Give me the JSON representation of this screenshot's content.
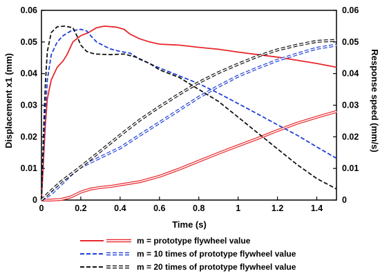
{
  "chart_data": {
    "type": "line",
    "xlabel": "Time (s)",
    "ylabel_left": "Displacement x1 (mm)",
    "ylabel_right": "Response speed (mm/s)",
    "xlim": [
      0,
      1.5
    ],
    "ylim_left": [
      0,
      0.06
    ],
    "ylim_right": [
      0,
      0.06
    ],
    "x_ticks": [
      "0",
      "0.2",
      "0.4",
      "0.6",
      "0.8",
      "1",
      "1.2",
      "1.4"
    ],
    "y_ticks_left": [
      "0",
      "0.01",
      "0.02",
      "0.03",
      "0.04",
      "0.05",
      "0.06"
    ],
    "y_ticks_right": [
      "0",
      "0.01",
      "0.02",
      "0.03",
      "0.04",
      "0.05",
      "0.06"
    ],
    "grid": false,
    "legend_position": "bottom",
    "series": [
      {
        "name": "m = prototype flywheel value",
        "color": "#e8262b",
        "role": "speed",
        "axis": "right",
        "points": [
          [
            0,
            0
          ],
          [
            0.01,
            0.012
          ],
          [
            0.02,
            0.024
          ],
          [
            0.03,
            0.032
          ],
          [
            0.05,
            0.038
          ],
          [
            0.08,
            0.042
          ],
          [
            0.11,
            0.044
          ],
          [
            0.13,
            0.046
          ],
          [
            0.16,
            0.05
          ],
          [
            0.2,
            0.052
          ],
          [
            0.24,
            0.053
          ],
          [
            0.28,
            0.0545
          ],
          [
            0.32,
            0.055
          ],
          [
            0.38,
            0.0547
          ],
          [
            0.42,
            0.054
          ],
          [
            0.45,
            0.0525
          ],
          [
            0.5,
            0.051
          ],
          [
            0.55,
            0.05
          ],
          [
            0.6,
            0.0493
          ],
          [
            0.7,
            0.049
          ],
          [
            0.8,
            0.0483
          ],
          [
            0.9,
            0.0477
          ],
          [
            1.0,
            0.0468
          ],
          [
            1.1,
            0.046
          ],
          [
            1.2,
            0.0452
          ],
          [
            1.3,
            0.0442
          ],
          [
            1.4,
            0.0432
          ],
          [
            1.5,
            0.042
          ]
        ]
      },
      {
        "name": "m = prototype flywheel value",
        "color": "#e8262b",
        "role": "displacement",
        "axis": "left",
        "points": [
          [
            0,
            0
          ],
          [
            0.05,
            0
          ],
          [
            0.1,
            0.0002
          ],
          [
            0.15,
            0.001
          ],
          [
            0.2,
            0.0025
          ],
          [
            0.25,
            0.0035
          ],
          [
            0.3,
            0.004
          ],
          [
            0.35,
            0.0043
          ],
          [
            0.4,
            0.0048
          ],
          [
            0.5,
            0.0058
          ],
          [
            0.6,
            0.0075
          ],
          [
            0.7,
            0.0098
          ],
          [
            0.8,
            0.0123
          ],
          [
            0.9,
            0.0148
          ],
          [
            1.0,
            0.0172
          ],
          [
            1.1,
            0.0195
          ],
          [
            1.2,
            0.022
          ],
          [
            1.3,
            0.0243
          ],
          [
            1.4,
            0.0262
          ],
          [
            1.5,
            0.028
          ]
        ]
      },
      {
        "name": "m = 10 times of prototype flywheel value",
        "color": "#1f3fd6",
        "role": "speed",
        "axis": "right",
        "points": [
          [
            0,
            0
          ],
          [
            0.01,
            0.015
          ],
          [
            0.02,
            0.028
          ],
          [
            0.03,
            0.038
          ],
          [
            0.05,
            0.046
          ],
          [
            0.08,
            0.05
          ],
          [
            0.11,
            0.052
          ],
          [
            0.15,
            0.0535
          ],
          [
            0.2,
            0.054
          ],
          [
            0.23,
            0.0535
          ],
          [
            0.25,
            0.052
          ],
          [
            0.28,
            0.05
          ],
          [
            0.32,
            0.0487
          ],
          [
            0.35,
            0.0478
          ],
          [
            0.4,
            0.047
          ],
          [
            0.45,
            0.0465
          ],
          [
            0.5,
            0.0445
          ],
          [
            0.6,
            0.0418
          ],
          [
            0.7,
            0.0393
          ],
          [
            0.8,
            0.0368
          ],
          [
            0.9,
            0.0338
          ],
          [
            1.0,
            0.0305
          ],
          [
            1.1,
            0.0272
          ],
          [
            1.2,
            0.0238
          ],
          [
            1.3,
            0.0205
          ],
          [
            1.4,
            0.0168
          ],
          [
            1.5,
            0.0132
          ]
        ]
      },
      {
        "name": "m = 10 times of prototype flywheel value",
        "color": "#1f3fd6",
        "role": "displacement",
        "axis": "left",
        "points": [
          [
            0,
            0
          ],
          [
            0.05,
            0.002
          ],
          [
            0.1,
            0.005
          ],
          [
            0.15,
            0.008
          ],
          [
            0.2,
            0.0105
          ],
          [
            0.3,
            0.0135
          ],
          [
            0.4,
            0.0165
          ],
          [
            0.5,
            0.0205
          ],
          [
            0.6,
            0.0245
          ],
          [
            0.7,
            0.0285
          ],
          [
            0.8,
            0.0325
          ],
          [
            0.9,
            0.036
          ],
          [
            1.0,
            0.0392
          ],
          [
            1.1,
            0.0418
          ],
          [
            1.2,
            0.0442
          ],
          [
            1.3,
            0.0462
          ],
          [
            1.4,
            0.048
          ],
          [
            1.5,
            0.049
          ]
        ]
      },
      {
        "name": "m = 20 times of prototype flywheel value",
        "color": "#111111",
        "role": "speed",
        "axis": "right",
        "points": [
          [
            0,
            0
          ],
          [
            0.01,
            0.02
          ],
          [
            0.02,
            0.037
          ],
          [
            0.03,
            0.047
          ],
          [
            0.05,
            0.053
          ],
          [
            0.08,
            0.0548
          ],
          [
            0.12,
            0.055
          ],
          [
            0.16,
            0.0545
          ],
          [
            0.18,
            0.052
          ],
          [
            0.2,
            0.049
          ],
          [
            0.23,
            0.047
          ],
          [
            0.27,
            0.0462
          ],
          [
            0.35,
            0.046
          ],
          [
            0.42,
            0.0462
          ],
          [
            0.48,
            0.0452
          ],
          [
            0.55,
            0.0432
          ],
          [
            0.6,
            0.0412
          ],
          [
            0.7,
            0.0388
          ],
          [
            0.8,
            0.035
          ],
          [
            0.9,
            0.0312
          ],
          [
            1.0,
            0.0262
          ],
          [
            1.1,
            0.0212
          ],
          [
            1.2,
            0.0162
          ],
          [
            1.3,
            0.0112
          ],
          [
            1.4,
            0.0068
          ],
          [
            1.5,
            0.0035
          ]
        ]
      },
      {
        "name": "m = 20 times of prototype flywheel value",
        "color": "#111111",
        "role": "displacement",
        "axis": "left",
        "points": [
          [
            0,
            0
          ],
          [
            0.05,
            0.003
          ],
          [
            0.1,
            0.0058
          ],
          [
            0.2,
            0.0105
          ],
          [
            0.3,
            0.0155
          ],
          [
            0.4,
            0.0205
          ],
          [
            0.5,
            0.0253
          ],
          [
            0.6,
            0.0295
          ],
          [
            0.7,
            0.0335
          ],
          [
            0.8,
            0.0372
          ],
          [
            0.9,
            0.0403
          ],
          [
            1.0,
            0.043
          ],
          [
            1.1,
            0.0455
          ],
          [
            1.2,
            0.0475
          ],
          [
            1.3,
            0.049
          ],
          [
            1.4,
            0.0502
          ],
          [
            1.5,
            0.0505
          ]
        ]
      }
    ],
    "legend": [
      {
        "label": "m = prototype flywheel value",
        "color": "#e8262b"
      },
      {
        "label": "m = 10 times of prototype flywheel value",
        "color": "#1f3fd6"
      },
      {
        "label": "m = 20 times of prototype flywheel value",
        "color": "#111111"
      }
    ]
  }
}
